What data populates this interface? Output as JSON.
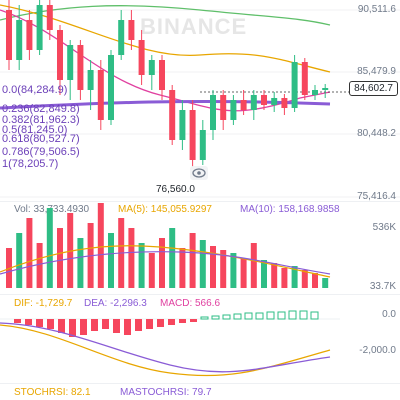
{
  "watermark": "BINANCE",
  "price_axis": [
    "90,511.6",
    "85,479.9",
    "80,448.2",
    "75,416.4"
  ],
  "current_price": "84,602.7",
  "low_marker": "76,560.0",
  "fib_levels": [
    {
      "label": "0.0(84,284.9)"
    },
    {
      "label": "0.236(82,849.8)"
    },
    {
      "label": "0.382(81,962.3)"
    },
    {
      "label": "0.5(81,245.0)"
    },
    {
      "label": "0.618(80,527.7)"
    },
    {
      "label": "0.786(79,506.5)"
    },
    {
      "label": "1(78,205.7)"
    }
  ],
  "volume": {
    "vol_label": "Vol: 33,733.4930",
    "ma5_label": "MA(5): 145,055.9297",
    "ma10_label": "MA(10): 158,168.9858",
    "axis_top": "536K",
    "axis_bottom": "33.7K"
  },
  "macd": {
    "dif_label": "DIF: -1,729.7",
    "dea_label": "DEA: -2,296.3",
    "macd_label": "MACD: 566.6",
    "axis_top": "0.0",
    "axis_bottom": "-2,000.0"
  },
  "stoch": {
    "stochrsi_label": "STOCHRSI: 82.1",
    "mastochrsi_label": "MASTOCHRSI: 79.7"
  },
  "colors": {
    "up": "#2ebd85",
    "down": "#f6465d",
    "ma_yellow": "#e8a600",
    "ma_pink": "#e040a0",
    "ma_green": "#5fbf6a",
    "ma_purple": "#8a5cd6",
    "dif": "#e8a600",
    "dea": "#8a5cd6"
  }
}
